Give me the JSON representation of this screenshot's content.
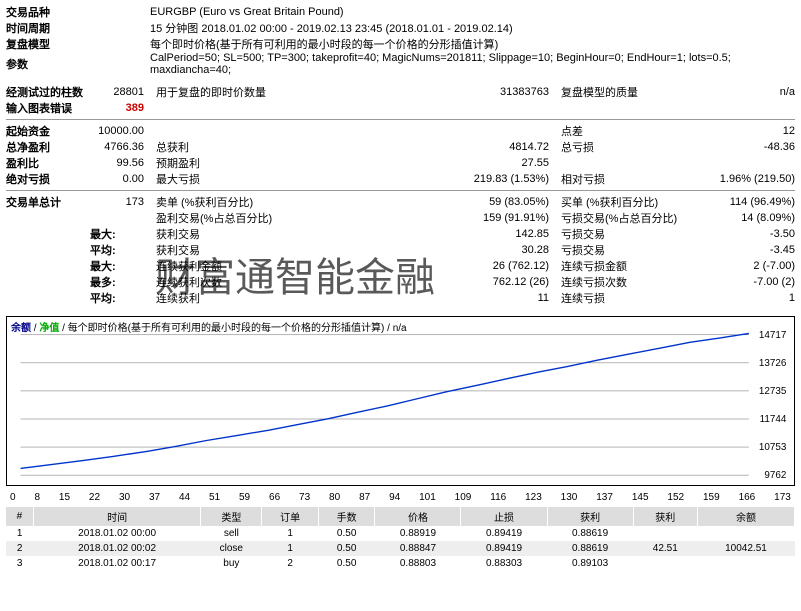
{
  "header": {
    "symbol_label": "交易品种",
    "symbol": "EURGBP (Euro vs Great Britain Pound)",
    "period_label": "时间周期",
    "period": "15 分钟图 2018.01.02 00:00 - 2019.02.13 23:45 (2018.01.01 - 2019.02.14)",
    "model_label": "复盘模型",
    "model": "每个即时价格(基于所有可利用的最小时段的每一个价格的分形插值计算)",
    "params_label": "参数",
    "params": "CalPeriod=50; SL=500; TP=300; takeprofit=40; MagicNums=201811; Slippage=10; BeginHour=0; EndHour=1; lots=0.5; maxdiancha=40;"
  },
  "summary": {
    "bars_label": "经测试过的柱数",
    "bars": "28801",
    "ticks_label": "用于复盘的即时价数量",
    "ticks": "31383763",
    "quality_label": "复盘模型的质量",
    "quality": "n/a",
    "mismatch_label": "输入图表错误",
    "mismatch": "389"
  },
  "stats": {
    "init_dep_label": "起始资金",
    "init_dep": "10000.00",
    "spread_label": "点差",
    "spread": "12",
    "net_profit_label": "总净盈利",
    "net_profit": "4766.36",
    "gross_profit_label": "总获利",
    "gross_profit": "4814.72",
    "gross_loss_label": "总亏损",
    "gross_loss": "-48.36",
    "pf_label": "盈利比",
    "pf": "99.56",
    "exp_payoff_label": "预期盈利",
    "exp_payoff": "27.55",
    "abs_dd_label": "绝对亏损",
    "abs_dd": "0.00",
    "max_dd_label": "最大亏损",
    "max_dd": "219.83 (1.53%)",
    "rel_dd_label": "相对亏损",
    "rel_dd": "1.96% (219.50)"
  },
  "trades_summary": {
    "total_label": "交易单总计",
    "total": "173",
    "short_label": "卖单 (%获利百分比)",
    "short": "59 (83.05%)",
    "long_label": "买单 (%获利百分比)",
    "long": "114 (96.49%)",
    "profit_trades_label": "盈利交易(%占总百分比)",
    "profit_trades": "159 (91.91%)",
    "loss_trades_label": "亏损交易(%占总百分比)",
    "loss_trades": "14 (8.09%)",
    "largest_label": "最大:",
    "largest_profit_label": "获利交易",
    "largest_profit": "142.85",
    "largest_loss_label": "亏损交易",
    "largest_loss": "-3.50",
    "avg_label": "平均:",
    "avg_profit_label": "获利交易",
    "avg_profit": "30.28",
    "avg_loss_label": "亏损交易",
    "avg_loss": "-3.45",
    "max_cons_label": "最大:",
    "max_cons_profit_label": "连续获利金额",
    "max_cons_profit": "26 (762.12)",
    "max_cons_loss_label": "连续亏损金额",
    "max_cons_loss": "2 (-7.00)",
    "most_cons_label": "最多:",
    "most_cons_wins_label": "连续获利次数",
    "most_cons_wins": "762.12 (26)",
    "most_cons_losses_label": "连续亏损次数",
    "most_cons_losses": "-7.00 (2)",
    "avg_cons_label": "平均:",
    "avg_cons_wins_label": "连续获利",
    "avg_cons_wins": "11",
    "avg_cons_losses_label": "连续亏损",
    "avg_cons_losses": "1"
  },
  "chart": {
    "title_balance": "余额",
    "title_equity": "净值",
    "title_sub": "每个即时价格(基于所有可利用的最小时段的每一个价格的分形插值计算)",
    "title_na": "n/a",
    "xlabels": [
      "0",
      "8",
      "15",
      "22",
      "30",
      "37",
      "44",
      "51",
      "59",
      "66",
      "73",
      "80",
      "87",
      "94",
      "101",
      "109",
      "116",
      "123",
      "130",
      "137",
      "145",
      "152",
      "159",
      "166",
      "173"
    ],
    "ylabels": [
      "14717",
      "13726",
      "12735",
      "11744",
      "10753",
      "9762"
    ],
    "ylim": [
      9762,
      14717
    ],
    "points": [
      [
        0,
        10000
      ],
      [
        8,
        10150
      ],
      [
        15,
        10280
      ],
      [
        22,
        10420
      ],
      [
        30,
        10600
      ],
      [
        37,
        10780
      ],
      [
        44,
        10980
      ],
      [
        51,
        11150
      ],
      [
        59,
        11350
      ],
      [
        66,
        11550
      ],
      [
        73,
        11750
      ],
      [
        80,
        11980
      ],
      [
        87,
        12200
      ],
      [
        94,
        12450
      ],
      [
        101,
        12700
      ],
      [
        109,
        12950
      ],
      [
        116,
        13180
      ],
      [
        123,
        13400
      ],
      [
        130,
        13600
      ],
      [
        137,
        13820
      ],
      [
        145,
        14050
      ],
      [
        152,
        14250
      ],
      [
        159,
        14450
      ],
      [
        166,
        14600
      ],
      [
        173,
        14766
      ]
    ],
    "line_color": "#0033cc",
    "grid_color": "#000",
    "bg": "#ffffff"
  },
  "trade_table": {
    "cols": [
      "#",
      "时间",
      "类型",
      "订单",
      "手数",
      "价格",
      "止损",
      "获利",
      "获利",
      "余额"
    ],
    "rows": [
      [
        "1",
        "2018.01.02 00:00",
        "sell",
        "1",
        "0.50",
        "0.88919",
        "0.89419",
        "0.88619",
        "",
        ""
      ],
      [
        "2",
        "2018.01.02 00:02",
        "close",
        "1",
        "0.50",
        "0.88847",
        "0.89419",
        "0.88619",
        "42.51",
        "10042.51"
      ],
      [
        "3",
        "2018.01.02 00:17",
        "buy",
        "2",
        "0.50",
        "0.88803",
        "0.88303",
        "0.89103",
        "",
        ""
      ]
    ]
  },
  "watermark": "财富通智能金融"
}
